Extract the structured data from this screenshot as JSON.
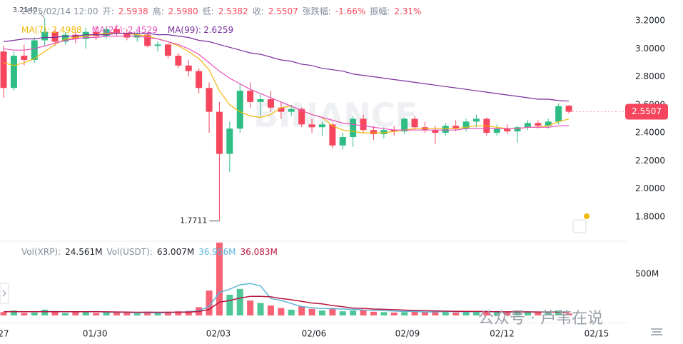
{
  "header": {
    "items": [
      {
        "text": "2025/02/14 12:00",
        "color": "#848e9c"
      },
      {
        "text": "开:",
        "color": "#848e9c"
      },
      {
        "text": "2.5938",
        "color": "#f6465d"
      },
      {
        "text": "高:",
        "color": "#848e9c"
      },
      {
        "text": "2.5980",
        "color": "#f6465d"
      },
      {
        "text": "低:",
        "color": "#848e9c"
      },
      {
        "text": "2.5382",
        "color": "#f6465d"
      },
      {
        "text": "收:",
        "color": "#848e9c"
      },
      {
        "text": "2.5507",
        "color": "#f6465d"
      },
      {
        "text": "张跌幅:",
        "color": "#848e9c"
      },
      {
        "text": "-1.66%",
        "color": "#f6465d"
      },
      {
        "text": "振幅:",
        "color": "#848e9c"
      },
      {
        "text": "2.31%",
        "color": "#f6465d"
      }
    ]
  },
  "watermarks": [
    "BINANCE",
    "公众号 · 芦苇在说"
  ],
  "chart_data": {
    "type": "candlestick",
    "categories": [
      null,
      null,
      null,
      null,
      null,
      null,
      null,
      null,
      null,
      null,
      null,
      null,
      null,
      null,
      null,
      null,
      null,
      null,
      null,
      null,
      null,
      null,
      null,
      null,
      null,
      null,
      null,
      null,
      null,
      null,
      null,
      null,
      null,
      null,
      null,
      null,
      null,
      null,
      null,
      null,
      null,
      null,
      null,
      null,
      null,
      null,
      null,
      null,
      null,
      null,
      null,
      null,
      null,
      null,
      null,
      null
    ],
    "open": [
      2.98,
      2.72,
      2.95,
      2.92,
      3.06,
      3.12,
      3.05,
      3.1,
      3.07,
      3.12,
      3.09,
      3.14,
      3.11,
      3.08,
      3.1,
      3.02,
      3.03,
      2.95,
      2.88,
      2.84,
      2.72,
      2.55,
      2.25,
      2.43,
      2.7,
      2.62,
      2.64,
      2.58,
      2.55,
      2.57,
      2.46,
      2.44,
      2.46,
      2.31,
      2.37,
      2.5,
      2.42,
      2.39,
      2.42,
      2.41,
      2.5,
      2.44,
      2.42,
      2.4,
      2.45,
      2.43,
      2.48,
      2.5,
      2.4,
      2.43,
      2.41,
      2.44,
      2.47,
      2.45,
      2.48,
      2.5938
    ],
    "high": [
      3.02,
      2.98,
      3.03,
      3.08,
      3.214,
      3.14,
      3.12,
      3.12,
      3.15,
      3.16,
      3.16,
      3.17,
      3.14,
      3.12,
      3.11,
      3.05,
      3.04,
      2.97,
      2.92,
      2.86,
      2.76,
      2.62,
      2.48,
      2.75,
      2.76,
      2.68,
      2.7,
      2.62,
      2.6,
      2.58,
      2.5,
      2.48,
      2.47,
      2.4,
      2.52,
      2.53,
      2.45,
      2.44,
      2.45,
      2.51,
      2.52,
      2.48,
      2.45,
      2.47,
      2.49,
      2.5,
      2.53,
      2.51,
      2.46,
      2.46,
      2.45,
      2.49,
      2.49,
      2.5,
      2.61,
      2.598
    ],
    "low": [
      2.65,
      2.7,
      2.88,
      2.9,
      3.02,
      3.02,
      3.03,
      3.04,
      3.0,
      3.06,
      3.07,
      3.09,
      3.06,
      3.05,
      3.01,
      2.98,
      2.93,
      2.86,
      2.8,
      2.68,
      2.4,
      1.7711,
      2.12,
      2.4,
      2.58,
      2.52,
      2.55,
      2.5,
      2.52,
      2.44,
      2.4,
      2.38,
      2.29,
      2.28,
      2.3,
      2.4,
      2.35,
      2.36,
      2.38,
      2.39,
      2.42,
      2.4,
      2.32,
      2.38,
      2.41,
      2.41,
      2.44,
      2.38,
      2.38,
      2.39,
      2.33,
      2.42,
      2.43,
      2.43,
      2.46,
      2.5382
    ],
    "close": [
      2.72,
      2.95,
      2.92,
      3.06,
      3.12,
      3.05,
      3.1,
      3.07,
      3.12,
      3.09,
      3.14,
      3.11,
      3.08,
      3.1,
      3.02,
      3.03,
      2.95,
      2.88,
      2.84,
      2.72,
      2.55,
      2.25,
      2.43,
      2.7,
      2.62,
      2.64,
      2.58,
      2.55,
      2.57,
      2.46,
      2.44,
      2.46,
      2.31,
      2.37,
      2.5,
      2.42,
      2.39,
      2.42,
      2.41,
      2.5,
      2.44,
      2.42,
      2.4,
      2.45,
      2.43,
      2.48,
      2.5,
      2.4,
      2.43,
      2.41,
      2.44,
      2.47,
      2.45,
      2.48,
      2.59,
      2.5507
    ],
    "up_color": "#2ebd85",
    "down_color": "#f6465d",
    "xlim": [
      -0.35,
      60.76
    ],
    "xticks": [
      {
        "value": 0,
        "label": "27"
      },
      {
        "value": 8.9,
        "label": "01/30"
      },
      {
        "value": 20.9,
        "label": "02/03"
      },
      {
        "value": 30.2,
        "label": "02/06"
      },
      {
        "value": 39.3,
        "label": "02/09"
      },
      {
        "value": 48.5,
        "label": "02/12"
      },
      {
        "value": 57.7,
        "label": "02/15"
      }
    ],
    "ylim": [
      1.642,
      3.322
    ],
    "yticks": [
      {
        "value": 1.8,
        "label": "1.8000"
      },
      {
        "value": 2,
        "label": "2.0000"
      },
      {
        "value": 2.2,
        "label": "2.2000"
      },
      {
        "value": 2.4,
        "label": "2.4000"
      },
      {
        "value": 2.6,
        "label": "2.6000"
      },
      {
        "value": 2.8,
        "label": "2.8000"
      },
      {
        "value": 3,
        "label": "3.0000"
      },
      {
        "value": 3.2,
        "label": "3.2000"
      }
    ],
    "grid": false,
    "annotations": [
      {
        "value": 3.214,
        "label": "3.2140"
      },
      {
        "value": 1.7711,
        "label": "1.7711"
      }
    ],
    "last_price": {
      "value": 2.5507,
      "label": "2.5507"
    },
    "series": [
      {
        "name": "MA(7):",
        "last_label": "2.4988",
        "color": "#f0b90b",
        "values": [
          2.9,
          2.88,
          2.9,
          2.93,
          2.98,
          3.03,
          3.07,
          3.08,
          3.09,
          3.1,
          3.11,
          3.11,
          3.11,
          3.1,
          3.09,
          3.07,
          3.05,
          3.02,
          2.98,
          2.93,
          2.85,
          2.7,
          2.6,
          2.55,
          2.52,
          2.51,
          2.53,
          2.58,
          2.59,
          2.56,
          2.53,
          2.51,
          2.45,
          2.42,
          2.41,
          2.4,
          2.4,
          2.4,
          2.41,
          2.42,
          2.43,
          2.43,
          2.43,
          2.43,
          2.43,
          2.44,
          2.45,
          2.45,
          2.44,
          2.43,
          2.43,
          2.44,
          2.44,
          2.45,
          2.48,
          2.4988
        ]
      },
      {
        "name": "MA(25):",
        "last_label": "2.4529",
        "color": "#e84fbc",
        "values": [
          3.0,
          2.99,
          2.99,
          3.0,
          3.02,
          3.04,
          3.06,
          3.07,
          3.08,
          3.08,
          3.09,
          3.09,
          3.09,
          3.09,
          3.08,
          3.07,
          3.05,
          3.03,
          3.0,
          2.96,
          2.9,
          2.84,
          2.79,
          2.75,
          2.71,
          2.68,
          2.65,
          2.62,
          2.59,
          2.56,
          2.53,
          2.51,
          2.49,
          2.47,
          2.46,
          2.45,
          2.44,
          2.43,
          2.42,
          2.42,
          2.42,
          2.42,
          2.42,
          2.42,
          2.42,
          2.43,
          2.43,
          2.43,
          2.43,
          2.43,
          2.43,
          2.44,
          2.44,
          2.44,
          2.45,
          2.4529
        ]
      },
      {
        "name": "MA(99):",
        "last_label": "2.6259",
        "color": "#7b2fa0",
        "values": [
          3.05,
          3.06,
          3.07,
          3.07,
          3.08,
          3.08,
          3.09,
          3.09,
          3.1,
          3.1,
          3.1,
          3.11,
          3.11,
          3.11,
          3.11,
          3.1,
          3.1,
          3.09,
          3.08,
          3.06,
          3.05,
          3.03,
          3.01,
          2.99,
          2.97,
          2.96,
          2.94,
          2.92,
          2.91,
          2.89,
          2.88,
          2.86,
          2.85,
          2.84,
          2.82,
          2.81,
          2.8,
          2.79,
          2.78,
          2.77,
          2.76,
          2.75,
          2.74,
          2.73,
          2.72,
          2.71,
          2.7,
          2.69,
          2.68,
          2.67,
          2.66,
          2.65,
          2.64,
          2.64,
          2.63,
          2.6259
        ]
      }
    ],
    "volume": {
      "legend": [
        {
          "text": "Vol(XRP):",
          "color": "#848e9c"
        },
        {
          "text": "24.561M",
          "color": "#1e2329"
        },
        {
          "text": "Vol(USDT):",
          "color": "#848e9c"
        },
        {
          "text": "63.007M",
          "color": "#1e2329"
        }
      ],
      "ylim": [
        0,
        900
      ],
      "yticks": [
        {
          "value": 500,
          "label": "500M"
        }
      ],
      "values": [
        40,
        60,
        30,
        35,
        70,
        45,
        30,
        40,
        50,
        30,
        40,
        35,
        30,
        25,
        40,
        30,
        45,
        50,
        55,
        100,
        300,
        880,
        250,
        320,
        180,
        150,
        120,
        90,
        70,
        110,
        80,
        60,
        90,
        50,
        60,
        70,
        45,
        40,
        35,
        40,
        50,
        45,
        60,
        40,
        35,
        45,
        40,
        55,
        40,
        35,
        45,
        40,
        35,
        40,
        60,
        24.561
      ],
      "series": [
        {
          "last_label": "36.956M",
          "color": "#5ab4d8",
          "values": [
            45,
            45,
            45,
            45,
            47,
            48,
            46,
            44,
            45,
            47,
            40,
            39,
            37,
            34,
            34,
            32,
            34,
            40,
            44,
            56,
            110,
            277,
            317,
            370,
            386,
            356,
            204,
            182,
            144,
            108,
            94,
            84,
            82,
            78,
            74,
            66,
            63,
            59,
            54,
            48,
            48,
            42,
            44,
            47,
            46,
            45,
            44,
            47,
            43,
            41,
            43,
            43,
            41,
            39,
            44,
            36.956
          ]
        },
        {
          "last_label": "36.083M",
          "color": "#b8163f",
          "values": [
            45,
            45,
            45,
            45,
            45,
            45,
            46,
            46,
            46,
            46,
            44,
            42,
            41,
            39,
            40,
            39,
            39,
            40,
            40,
            47,
            72,
            160,
            180,
            210,
            230,
            230,
            225,
            205,
            190,
            170,
            150,
            140,
            120,
            105,
            90,
            85,
            78,
            74,
            70,
            65,
            60,
            57,
            55,
            52,
            50,
            49,
            48,
            47,
            46,
            44,
            44,
            43,
            42,
            41,
            40,
            36.083
          ]
        }
      ]
    }
  }
}
